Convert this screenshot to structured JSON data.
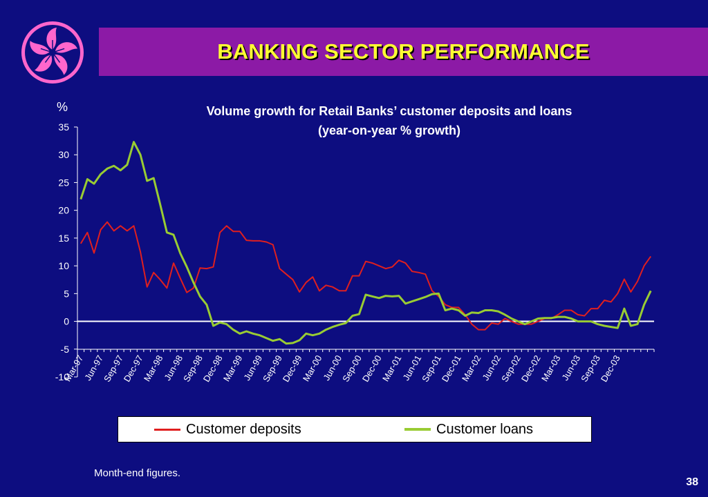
{
  "slide": {
    "title": "BANKING SECTOR PERFORMANCE",
    "footnote": "Month-end figures.",
    "page_number": "38",
    "logo_icon": "bauhinia-flower-icon"
  },
  "colors": {
    "background": "#0d0d80",
    "title_bar": "#8c1aa6",
    "title_text": "#ffff33",
    "deposits": "#e01f1f",
    "loans": "#99cc33",
    "zero_line": "#ffffff"
  },
  "chart_data": {
    "type": "line",
    "title": "Volume growth for Retail Banks’ customer deposits and loans",
    "subtitle": "(year-on-year % growth)",
    "ylabel": "%",
    "ylim": [
      -10,
      35
    ],
    "yticks": [
      35,
      30,
      25,
      20,
      15,
      10,
      5,
      0,
      -5,
      -10
    ],
    "x_tick_labels": [
      "Mar-97",
      "Jun-97",
      "Sep-97",
      "Dec-97",
      "Mar-98",
      "Jun-98",
      "Sep-98",
      "Dec-98",
      "Mar-99",
      "Jun-99",
      "Sep-99",
      "Dec-99",
      "Mar-00",
      "Jun-00",
      "Sep-00",
      "Dec-00",
      "Mar-01",
      "Jun-01",
      "Sep-01",
      "Dec-01",
      "Mar-02",
      "Jun-02",
      "Sep-02",
      "Dec-02",
      "Mar-03",
      "Jun-03",
      "Sep-03",
      "Dec-03"
    ],
    "x_start": "Mar-97",
    "frequency": "monthly",
    "grid": false,
    "legend_position": "bottom",
    "series": [
      {
        "name": "Customer deposits",
        "color": "#e01f1f",
        "values": [
          14,
          16,
          12.3,
          16.5,
          17.9,
          16.3,
          17.2,
          16.3,
          17.2,
          12.5,
          6.2,
          8.8,
          7.5,
          6.0,
          10.5,
          7.8,
          5.2,
          6.0,
          9.6,
          9.5,
          9.8,
          16.0,
          17.2,
          16.2,
          16.2,
          14.6,
          14.5,
          14.5,
          14.3,
          13.8,
          9.5,
          8.5,
          7.5,
          5.3,
          7.0,
          8.0,
          5.5,
          6.5,
          6.2,
          5.5,
          5.5,
          8.2,
          8.2,
          10.8,
          10.5,
          10.0,
          9.5,
          9.8,
          11.0,
          10.5,
          9.0,
          8.8,
          8.5,
          5.5,
          4.5,
          3.0,
          2.5,
          2.5,
          1.2,
          -0.5,
          -1.5,
          -1.5,
          -0.3,
          -0.5,
          0.5,
          0.0,
          -0.5,
          -0.5,
          -0.5,
          0.0,
          0.5,
          0.5,
          1.2,
          2.0,
          2.0,
          1.2,
          1.0,
          2.3,
          2.3,
          3.8,
          3.5,
          5.0,
          7.6,
          5.3,
          7.2,
          10.0,
          11.7
        ]
      },
      {
        "name": "Customer loans",
        "color": "#99cc33",
        "values": [
          22,
          25.6,
          24.8,
          26.5,
          27.5,
          28.0,
          27.2,
          28.2,
          32.3,
          30.0,
          25.3,
          25.8,
          21.0,
          16.0,
          15.6,
          12.3,
          9.8,
          7.0,
          4.5,
          3.0,
          -0.8,
          -0.2,
          -0.5,
          -1.5,
          -2.2,
          -1.8,
          -2.2,
          -2.5,
          -3.0,
          -3.5,
          -3.2,
          -4.0,
          -3.9,
          -3.4,
          -2.2,
          -2.5,
          -2.2,
          -1.5,
          -1.0,
          -0.6,
          -0.3,
          1.0,
          1.3,
          4.8,
          4.5,
          4.2,
          4.6,
          4.5,
          4.6,
          3.2,
          3.6,
          4.0,
          4.4,
          4.9,
          5.0,
          2.0,
          2.3,
          2.0,
          1.0,
          1.6,
          1.5,
          2.0,
          2.0,
          1.8,
          1.2,
          0.5,
          0.0,
          -0.5,
          0.0,
          0.5,
          0.6,
          0.6,
          0.8,
          0.8,
          0.5,
          0.0,
          0.0,
          0.0,
          -0.5,
          -0.8,
          -1.0,
          -1.2,
          2.3,
          -0.8,
          -0.5,
          3.0,
          5.5
        ]
      }
    ]
  }
}
